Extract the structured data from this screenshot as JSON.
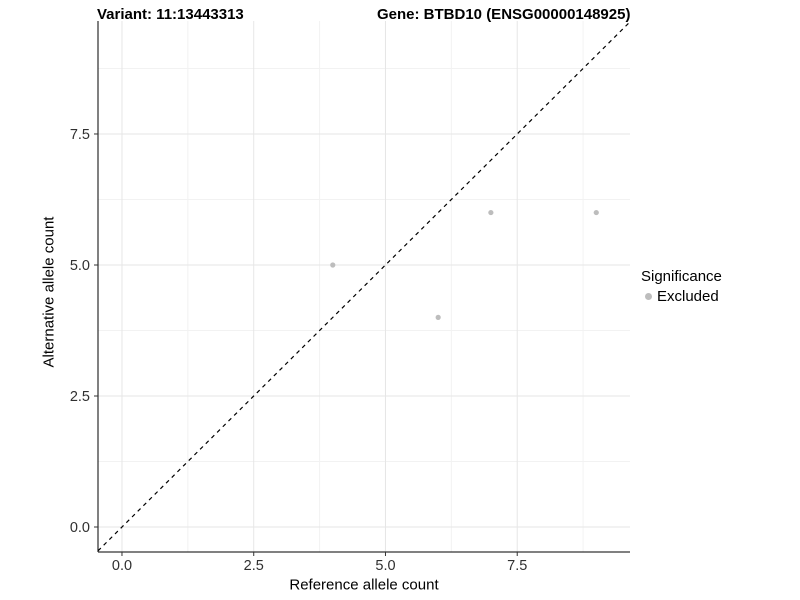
{
  "header": {
    "variant_title": "Variant: 11:13443313",
    "gene_title": "Gene: BTBD10 (ENSG00000148925)"
  },
  "chart_data": {
    "type": "scatter",
    "xlabel": "Reference allele count",
    "ylabel": "Alternative allele count",
    "xlim": [
      -0.455,
      9.64
    ],
    "ylim": [
      -0.477,
      9.656
    ],
    "x_ticks": {
      "values": [
        0,
        2.5,
        5,
        7.5
      ],
      "labels": [
        "0.0",
        "2.5",
        "5.0",
        "7.5"
      ]
    },
    "y_ticks": {
      "values": [
        0,
        2.5,
        5,
        7.5
      ],
      "labels": [
        "0.0",
        "2.5",
        "5.0",
        "7.5"
      ]
    },
    "x_minor": [
      1.25,
      3.75,
      6.25,
      8.75
    ],
    "y_minor": [
      1.25,
      3.75,
      6.25,
      8.75
    ],
    "grid": "major+minor",
    "series": [
      {
        "name": "Excluded",
        "color": "#bdbdbd",
        "marker": "circle",
        "points": [
          [
            4,
            5
          ],
          [
            6,
            4
          ],
          [
            7,
            6
          ],
          [
            9,
            6
          ]
        ]
      }
    ],
    "identity_line": {
      "slope": 1,
      "intercept": 0,
      "style": "dashed",
      "color": "#000000"
    },
    "legend": {
      "title": "Significance",
      "position": "right",
      "entries": [
        {
          "label": "Excluded",
          "color": "#bdbdbd",
          "marker": "circle"
        }
      ]
    },
    "colors": {
      "point": "#bdbdbd",
      "grid_major": "#e6e6e6",
      "grid_minor": "#f2f2f2",
      "axis_line": "#000000",
      "tick_mark": "#333333",
      "tick_label": "#303030",
      "background": "#ffffff"
    }
  }
}
